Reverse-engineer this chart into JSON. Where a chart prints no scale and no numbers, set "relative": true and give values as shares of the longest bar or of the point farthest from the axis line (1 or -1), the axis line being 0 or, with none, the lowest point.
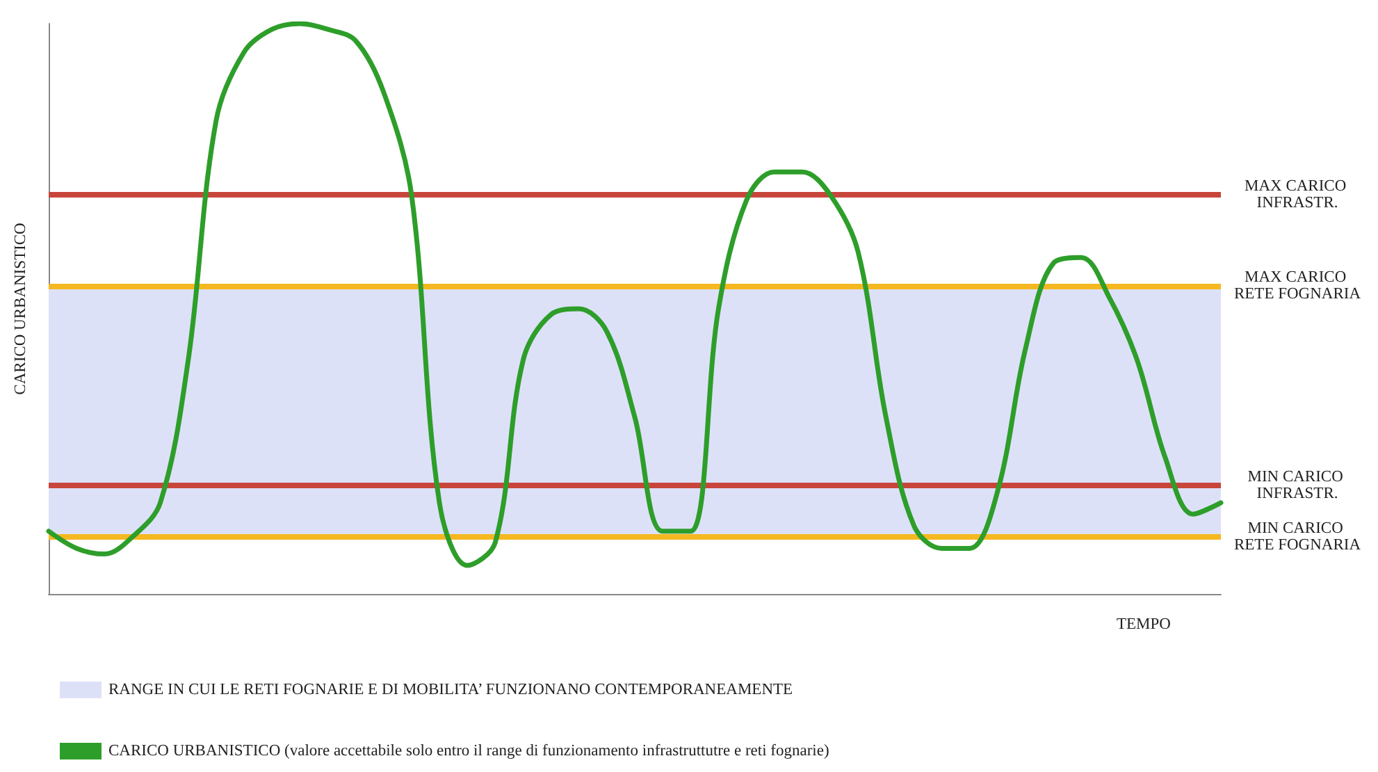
{
  "chart_data": {
    "type": "line",
    "relative": true,
    "xlabel": "TEMPO",
    "ylabel": "CARICO URBANISTICO",
    "categories": [
      null,
      null,
      null,
      null,
      null,
      null,
      null,
      null,
      null,
      null,
      null,
      null,
      null,
      null,
      null,
      null,
      null,
      null,
      null,
      null,
      null,
      null,
      null,
      null,
      null,
      null,
      null,
      null,
      null,
      null,
      null,
      null,
      null,
      null,
      null,
      null,
      null,
      null,
      null,
      null,
      null,
      null,
      null
    ],
    "series": [
      {
        "name": "CARICO URBANISTICO (valore accettabile solo entro il range di funzionamento infrastruttutre e reti fognarie)",
        "color": "#2e9e2a",
        "values": [
          0.11,
          0.08,
          0.07,
          0.1,
          0.16,
          0.41,
          0.83,
          0.95,
          0.99,
          1.0,
          0.99,
          0.97,
          0.88,
          0.7,
          0.16,
          0.05,
          0.09,
          0.41,
          0.49,
          0.5,
          0.46,
          0.31,
          0.11,
          0.11,
          0.5,
          0.69,
          0.74,
          0.74,
          0.7,
          0.6,
          0.31,
          0.12,
          0.08,
          0.08,
          0.18,
          0.43,
          0.58,
          0.59,
          0.52,
          0.41,
          0.24,
          0.14,
          0.16
        ]
      }
    ],
    "ref_lines": [
      {
        "axis": "y",
        "value": 0.7,
        "label": "MAX CARICO INFRASTR.",
        "color": "#c8453c"
      },
      {
        "axis": "y",
        "value": 0.54,
        "label": "MAX CARICO RETE FOGNARIA",
        "color": "#f5b820"
      },
      {
        "axis": "y",
        "value": 0.19,
        "label": "MIN CARICO INFRASTR.",
        "color": "#c8453c"
      },
      {
        "axis": "y",
        "value": 0.1,
        "label": "MIN CARICO RETE FOGNARIA",
        "color": "#f5b820"
      }
    ],
    "bands": [
      {
        "axis": "y",
        "from": 0.1,
        "to": 0.54,
        "label": "RANGE IN CUI LE RETI FOGNARIE E DI MOBILITA’ FUNZIONANO CONTEMPORANEAMENTE",
        "color": "#dde1f8"
      }
    ],
    "legend": "bottom",
    "grid": false,
    "marker": "none",
    "line_style": "solid"
  }
}
